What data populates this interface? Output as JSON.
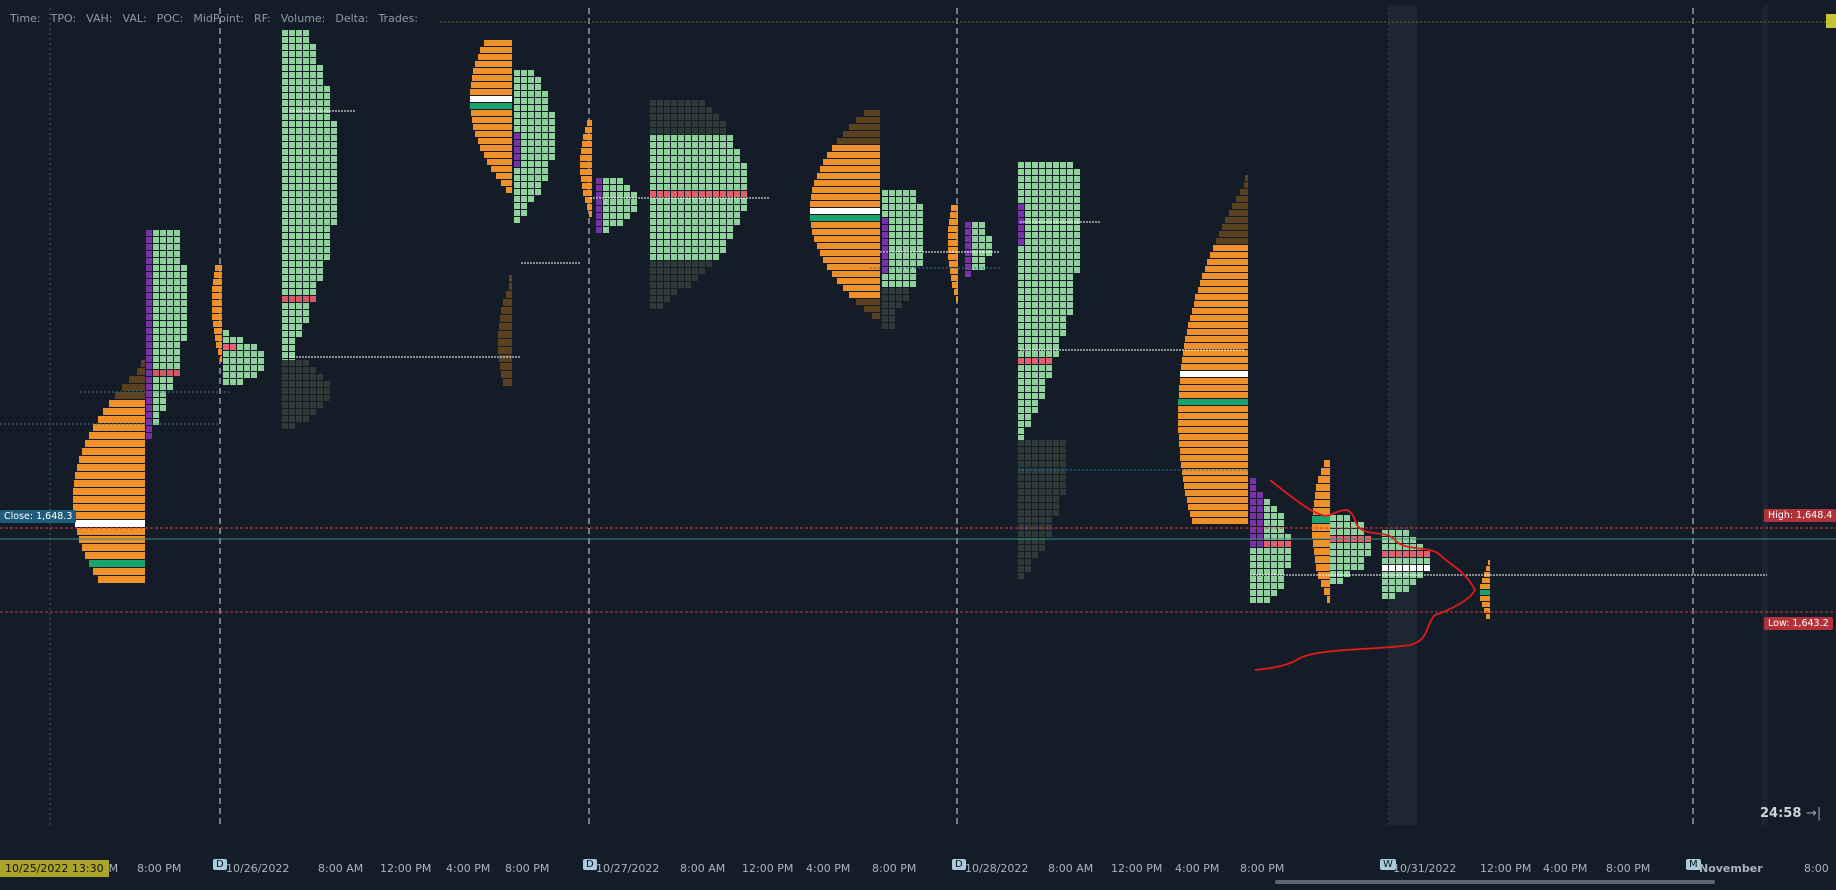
{
  "toolbar": {
    "items": [
      {
        "label": "Time:"
      },
      {
        "label": "TPO:"
      },
      {
        "label": "VAH:"
      },
      {
        "label": "VAL:"
      },
      {
        "label": "POC:"
      },
      {
        "label": "MidPoint:"
      },
      {
        "label": "RF:"
      },
      {
        "label": "Volume:"
      },
      {
        "label": "Delta:"
      },
      {
        "label": "Trades:"
      }
    ]
  },
  "price_tags": {
    "close": "Close: 1,648.3",
    "high": "High: 1,648.4",
    "low": "Low: 1,643.2"
  },
  "countdown": "24:58",
  "countdown_icon": "→|",
  "corner_label": "10/25/2022 13:30",
  "time_axis": [
    {
      "text": "PM"
    },
    {
      "text": "8:00 PM"
    },
    {
      "badge": "D",
      "text": "10/26/2022"
    },
    {
      "text": "8:00 AM"
    },
    {
      "text": "12:00 PM"
    },
    {
      "text": "4:00 PM"
    },
    {
      "text": "8:00 PM"
    },
    {
      "badge": "D",
      "text": "10/27/2022"
    },
    {
      "text": "8:00 AM"
    },
    {
      "text": "12:00 PM"
    },
    {
      "text": "4:00 PM"
    },
    {
      "text": "8:00 PM"
    },
    {
      "badge": "D",
      "text": "10/28/2022"
    },
    {
      "text": "8:00 AM"
    },
    {
      "text": "12:00 PM"
    },
    {
      "text": "4:00 PM"
    },
    {
      "text": "8:00 PM"
    },
    {
      "badge": "W",
      "text": "10/31/2022"
    },
    {
      "text": "12:00 PM"
    },
    {
      "text": "4:00 PM"
    },
    {
      "text": "8:00 PM"
    },
    {
      "badge": "M",
      "text": "November"
    },
    {
      "text": "8:00"
    }
  ],
  "colors": {
    "background": "#131c27",
    "tpo_green": "#8fd19a",
    "tpo_dark": "#2c3b37",
    "tpo_purple": "#7b2fa8",
    "volume_orange": "#f0902a",
    "volume_dim": "#5a4220",
    "poc_white": "#ffffff",
    "value_green": "#1aa36a",
    "red_line": "#d23a42",
    "annotation_red": "#e01b1b"
  }
}
